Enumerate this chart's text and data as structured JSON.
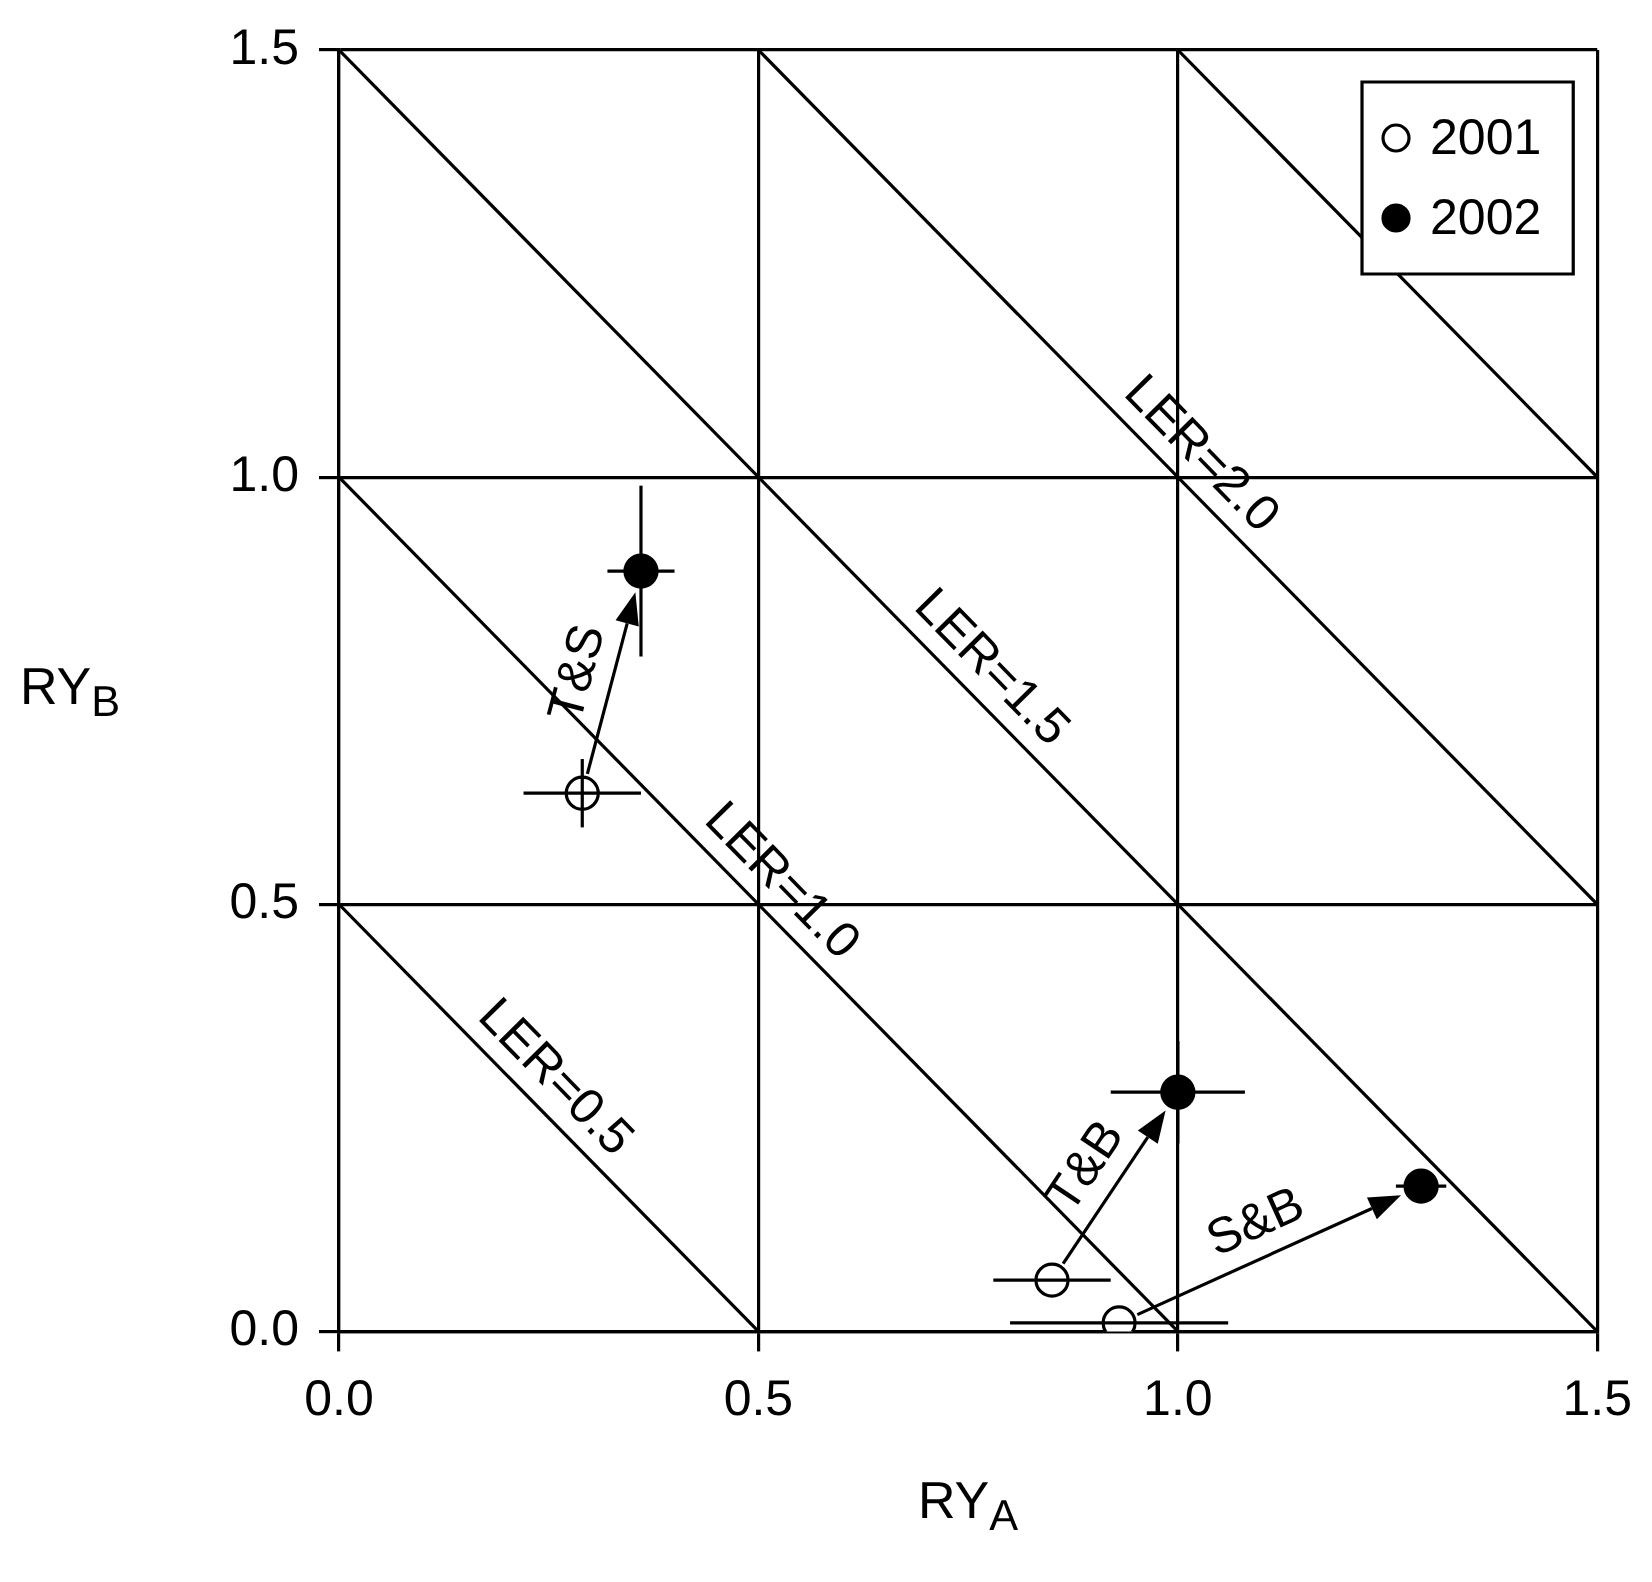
{
  "chart_data": {
    "type": "scatter",
    "xlabel": "RY$_{A}$",
    "ylabel": "RY$_{B}$",
    "xlim": [
      0,
      1.5
    ],
    "ylim": [
      0,
      1.5
    ],
    "xticks": [
      {
        "value": 0,
        "label": "0.0"
      },
      {
        "value": 0.5,
        "label": "0.5"
      },
      {
        "value": 1,
        "label": "1.0"
      },
      {
        "value": 1.5,
        "label": "1.5"
      }
    ],
    "yticks": [
      {
        "value": 0,
        "label": "0.0"
      },
      {
        "value": 0.5,
        "label": "0.5"
      },
      {
        "value": 1,
        "label": "1.0"
      },
      {
        "value": 1.5,
        "label": "1.5"
      }
    ],
    "grid": true,
    "legend": "top right",
    "marker": "circle",
    "series": [
      {
        "name": "2001",
        "color": "#ffffff",
        "x": [
          0.29,
          0.85,
          0.93
        ],
        "values": [
          0.63,
          0.06,
          0.01
        ],
        "xerrors": [
          0.07,
          0.07,
          0.13
        ],
        "errors": [
          0.04,
          null,
          null
        ]
      },
      {
        "name": "2002",
        "color": "#000000",
        "x": [
          0.36,
          1.0,
          1.29
        ],
        "values": [
          0.89,
          0.28,
          0.17
        ],
        "xerrors": [
          0.04,
          0.08,
          0.03
        ],
        "errors": [
          0.1,
          0.06,
          null
        ]
      },
      {
        "type": "line",
        "color": "#000000",
        "marker": "none",
        "x": [
          0,
          0.5
        ],
        "values": [
          0.5,
          0
        ]
      },
      {
        "type": "line",
        "color": "#000000",
        "marker": "none",
        "x": [
          0,
          1
        ],
        "values": [
          1,
          0
        ]
      },
      {
        "type": "line",
        "color": "#000000",
        "marker": "none",
        "x": [
          0,
          1.5
        ],
        "values": [
          1.5,
          0
        ]
      },
      {
        "type": "line",
        "color": "#000000",
        "marker": "none",
        "x": [
          0.5,
          1.5
        ],
        "values": [
          1.5,
          0.5
        ]
      },
      {
        "type": "line",
        "color": "#000000",
        "marker": "none",
        "x": [
          1,
          1.5
        ],
        "values": [
          1.5,
          1
        ]
      }
    ],
    "annotations": [
      {
        "text": "LER=0.5",
        "x": 0.23,
        "y": 0.27
      },
      {
        "text": "LER=1.0",
        "x": 0.5,
        "y": 0.5
      },
      {
        "text": "LER=1.5",
        "x": 0.75,
        "y": 0.75
      },
      {
        "text": "LER=2.0",
        "x": 1.0,
        "y": 1.0
      },
      {
        "text": "T&S",
        "x": 0.29,
        "y": 0.63
      },
      {
        "text": "T&B",
        "x": 0.85,
        "y": 0.06
      },
      {
        "text": "S&B",
        "x": 0.93,
        "y": 0.01
      }
    ]
  }
}
